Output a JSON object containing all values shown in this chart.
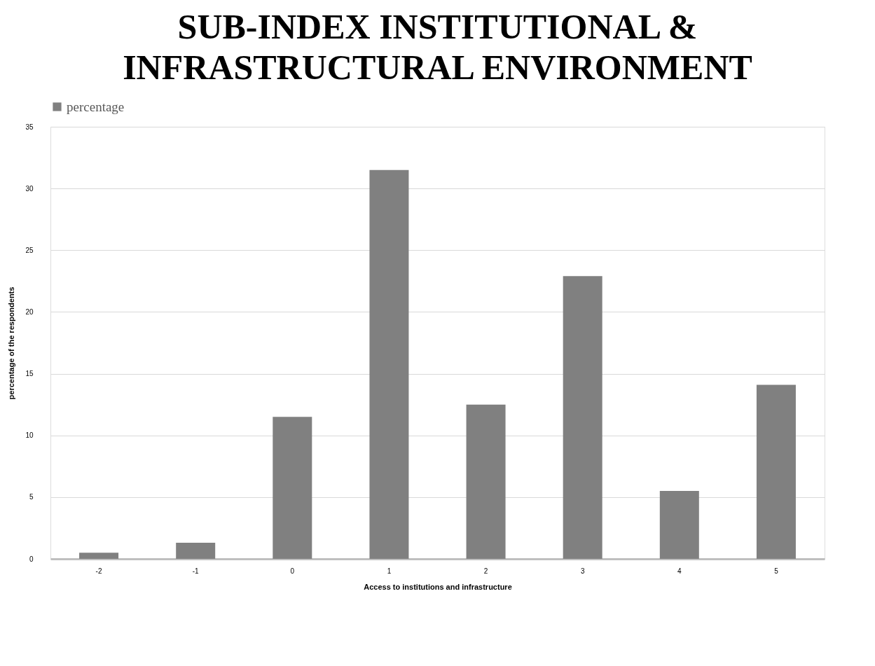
{
  "chart_data": {
    "type": "bar",
    "title": "SUB-INDEX INSTITUTIONAL & INFRASTRUCTURAL ENVIRONMENT",
    "xlabel": "Access to institutions and infrastructure",
    "ylabel": "percentage of the respondents",
    "categories": [
      "-2",
      "-1",
      "0",
      "1",
      "2",
      "3",
      "4",
      "5"
    ],
    "series": [
      {
        "name": "percentage",
        "color": "#808080",
        "values": [
          0.5,
          1.3,
          11.5,
          31.5,
          12.5,
          22.9,
          5.5,
          14.1
        ]
      }
    ],
    "ylim": [
      0,
      35
    ],
    "yticks": [
      0,
      5,
      10,
      15,
      20,
      25,
      30,
      35
    ],
    "grid": "y",
    "legend": "top"
  }
}
